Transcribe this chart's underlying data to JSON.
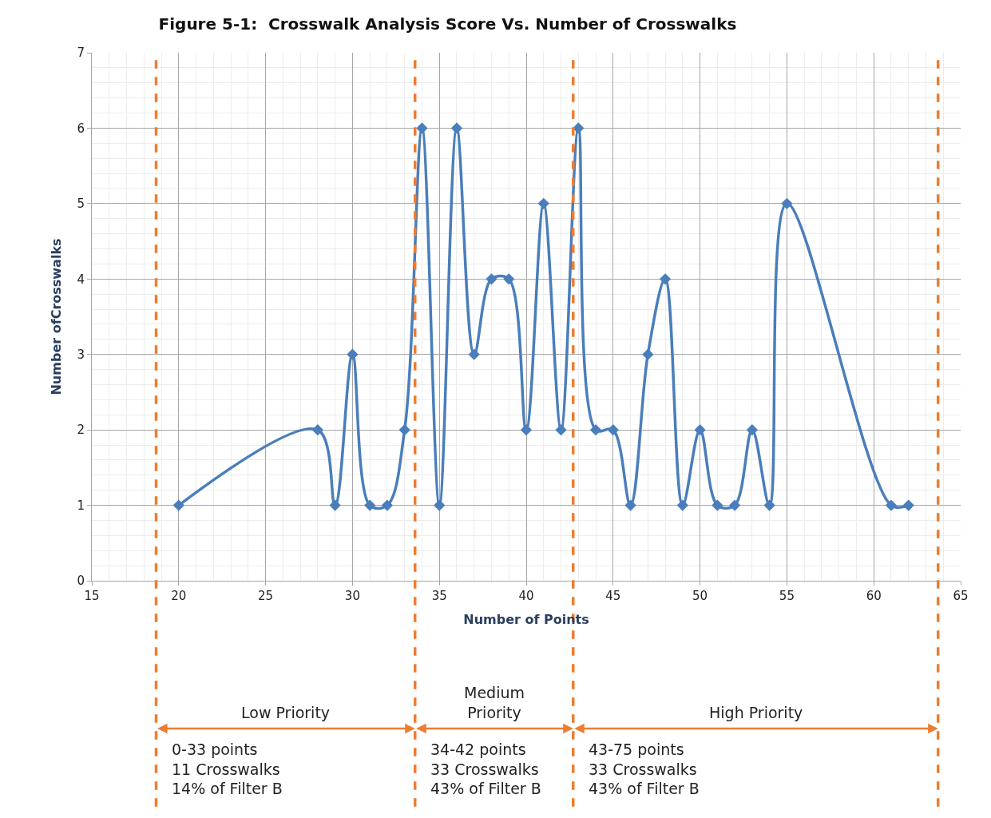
{
  "chart_data": {
    "type": "line",
    "title": "Figure 5-1:  Crosswalk Analysis Score Vs. Number of Crosswalks",
    "xlabel": "Number of Points",
    "ylabel": "Number ofCrosswalks",
    "x": [
      20,
      28,
      29,
      30,
      31,
      32,
      33,
      34,
      35,
      36,
      37,
      38,
      39,
      40,
      41,
      42,
      43,
      44,
      45,
      46,
      47,
      48,
      49,
      50,
      51,
      52,
      53,
      54,
      55,
      61,
      62
    ],
    "series": [
      {
        "color": "#4a7ebb",
        "values": [
          1,
          2,
          1,
          3,
          1,
          1,
          2,
          6,
          1,
          6,
          3,
          4,
          4,
          2,
          5,
          2,
          6,
          2,
          2,
          1,
          3,
          4,
          1,
          2,
          1,
          1,
          2,
          1,
          5,
          1,
          1
        ]
      }
    ],
    "xlim": [
      15,
      65
    ],
    "xticks": [
      15,
      20,
      25,
      30,
      35,
      40,
      45,
      50,
      55,
      60,
      65
    ],
    "ylim": [
      0,
      7
    ],
    "yticks": [
      0,
      1,
      2,
      3,
      4,
      5,
      6,
      7
    ],
    "grid": true,
    "marker": "diamond",
    "line_style": "solid",
    "ref_lines": [
      {
        "axis": "x",
        "value": 18.7,
        "color": "#ed7d31",
        "line_style": "dashed"
      },
      {
        "axis": "x",
        "value": 33.6,
        "color": "#ed7d31",
        "line_style": "dashed"
      },
      {
        "axis": "x",
        "value": 42.7,
        "color": "#ed7d31",
        "line_style": "dashed"
      },
      {
        "axis": "x",
        "value": 63.7,
        "color": "#ed7d31",
        "line_style": "dashed"
      }
    ],
    "annotations": [
      "Low Priority",
      "Medium\nPriority",
      "High Priority",
      "0-33 points\n11 Crosswalks\n14% of Filter B",
      "34-42 points\n33 Crosswalks\n43% of Filter B",
      "43-75 points\n33 Crosswalks\n43% of Filter B"
    ]
  }
}
